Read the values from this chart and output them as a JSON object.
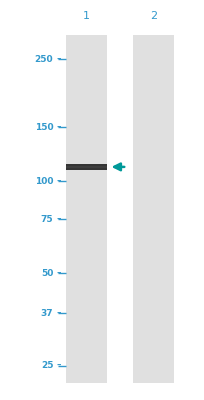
{
  "background_color": "#ffffff",
  "lane_color": "#e0e0e0",
  "band_color": "#222222",
  "arrow_color": "#009999",
  "label_color": "#3399cc",
  "marker_labels": [
    "250",
    "150",
    "100",
    "75",
    "50",
    "37",
    "25"
  ],
  "marker_positions_log": [
    250,
    150,
    100,
    75,
    50,
    37,
    25
  ],
  "band_kda": 111.21,
  "lane1_label": "1",
  "lane2_label": "2",
  "fig_width": 2.05,
  "fig_height": 4.0,
  "dpi": 100,
  "ymin": 22,
  "ymax": 300
}
